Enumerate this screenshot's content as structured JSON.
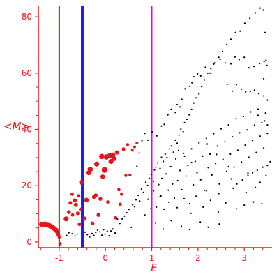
{
  "chart_data": {
    "type": "scatter",
    "title": "",
    "xlabel": "E",
    "ylabel": "<M>",
    "xlim": [
      -1.45,
      3.6
    ],
    "ylim": [
      -2,
      84
    ],
    "x_ticks": [
      -1,
      0,
      1,
      2,
      3
    ],
    "y_ticks": [
      0,
      20,
      40,
      60,
      80
    ],
    "grid": false,
    "axis_color": "#e0161b",
    "vertical_lines": [
      {
        "x": -1.0,
        "color": "#007a00"
      },
      {
        "x": -0.5,
        "color": "#1e1ee6"
      },
      {
        "x": 1.0,
        "color": "#e600e6"
      }
    ],
    "series": [
      {
        "color": "#e0161b",
        "points": [
          [
            -1.38,
            6.3,
            3.6
          ],
          [
            -1.34,
            6.1,
            3.6
          ],
          [
            -1.31,
            6.4,
            3.6
          ],
          [
            -1.28,
            6.0,
            3.6
          ],
          [
            -1.25,
            6.2,
            3.6
          ],
          [
            -1.22,
            5.9,
            3.6
          ],
          [
            -1.19,
            5.6,
            3.6
          ],
          [
            -1.16,
            5.4,
            3.6
          ],
          [
            -1.13,
            5.0,
            3.6
          ],
          [
            -1.1,
            4.7,
            3.6
          ],
          [
            -1.07,
            4.2,
            3.6
          ],
          [
            -1.04,
            3.6,
            3.3
          ],
          [
            -1.02,
            2.8,
            3.0
          ],
          [
            -1.0,
            1.8,
            2.5
          ],
          [
            -0.98,
            -0.6,
            2.4
          ],
          [
            -0.85,
            8.2,
            3.6
          ],
          [
            -0.79,
            10.6,
            2.8
          ],
          [
            -0.76,
            13.9,
            2.6
          ],
          [
            -0.72,
            17.0,
            2.4
          ],
          [
            -0.71,
            9.6,
            2.4
          ],
          [
            -0.66,
            14.8,
            2.8
          ],
          [
            -0.64,
            13.2,
            3.0
          ],
          [
            -0.6,
            10.2,
            2.6
          ],
          [
            -0.56,
            6.3,
            2.6
          ],
          [
            -0.58,
            16.4,
            2.4
          ],
          [
            -0.54,
            11.6,
            2.4
          ],
          [
            -0.52,
            21.2,
            3.3
          ],
          [
            -0.45,
            8.3,
            3.0
          ],
          [
            -0.41,
            14.9,
            3.3
          ],
          [
            -0.36,
            24.6,
            3.5
          ],
          [
            -0.33,
            25.8,
            3.8
          ],
          [
            -0.28,
            6.6,
            2.8
          ],
          [
            -0.25,
            16.0,
            2.8
          ],
          [
            -0.21,
            16.6,
            2.8
          ],
          [
            -0.19,
            27.7,
            3.6
          ],
          [
            -0.15,
            9.6,
            2.8
          ],
          [
            -0.11,
            15.3,
            2.8
          ],
          [
            -0.08,
            30.4,
            3.8
          ],
          [
            -0.06,
            23.2,
            3.2
          ],
          [
            -0.02,
            25.6,
            4.2
          ],
          [
            0.02,
            30.2,
            3.8
          ],
          [
            0.05,
            14.2,
            2.4
          ],
          [
            0.09,
            30.6,
            3.8
          ],
          [
            0.12,
            28.6,
            3.6
          ],
          [
            0.16,
            30.9,
            3.6
          ],
          [
            0.19,
            29.6,
            3.4
          ],
          [
            0.22,
            8.6,
            2.4
          ],
          [
            0.25,
            31.8,
            3.0
          ],
          [
            0.29,
            18.6,
            2.4
          ],
          [
            0.32,
            13.4,
            2.4
          ],
          [
            0.35,
            17.0,
            2.4
          ],
          [
            0.39,
            33.0,
            2.6
          ],
          [
            0.44,
            23.6,
            2.2
          ],
          [
            0.48,
            34.6,
            2.2
          ],
          [
            0.53,
            23.8,
            2.2
          ],
          [
            0.58,
            32.6,
            2.0
          ],
          [
            0.63,
            33.8,
            2.0
          ],
          [
            0.68,
            35.2,
            2.0
          ]
        ]
      },
      {
        "color": "#000000",
        "points": [
          [
            -0.84,
            2.3
          ],
          [
            -0.79,
            3.3
          ],
          [
            -0.72,
            2.9
          ],
          [
            -0.66,
            2.1
          ],
          [
            -0.61,
            2.8
          ],
          [
            -0.44,
            3.5
          ],
          [
            -0.39,
            2.6
          ],
          [
            -0.34,
            1.8
          ],
          [
            -0.29,
            3.0
          ],
          [
            -0.25,
            2.3
          ],
          [
            -0.21,
            3.4
          ],
          [
            -0.17,
            4.2
          ],
          [
            -0.12,
            3.6
          ],
          [
            -0.08,
            2.4
          ],
          [
            -0.04,
            4.4
          ],
          [
            -0.01,
            2.8
          ],
          [
            0.04,
            3.8
          ],
          [
            0.08,
            2.2
          ],
          [
            0.12,
            3.9
          ],
          [
            0.16,
            4.6
          ],
          [
            0.21,
            3.2
          ],
          [
            0.26,
            8.1
          ],
          [
            0.31,
            6.6
          ],
          [
            0.36,
            8.2
          ],
          [
            0.41,
            9.2
          ],
          [
            0.46,
            10.4
          ],
          [
            0.51,
            11.6
          ],
          [
            0.56,
            5.2
          ],
          [
            0.59,
            13.2
          ],
          [
            0.63,
            12.5
          ],
          [
            0.66,
            15.0
          ],
          [
            0.71,
            16.6
          ],
          [
            0.74,
            14.5
          ],
          [
            0.78,
            18.8
          ],
          [
            0.82,
            17.6
          ],
          [
            0.87,
            21.2
          ],
          [
            0.91,
            20.1
          ],
          [
            0.95,
            22.6
          ],
          [
            0.99,
            24.0
          ],
          [
            1.04,
            21.6
          ],
          [
            1.06,
            25.6
          ],
          [
            1.09,
            26.6
          ],
          [
            1.13,
            28.1
          ],
          [
            1.18,
            26.1
          ],
          [
            1.21,
            30.1
          ],
          [
            1.25,
            28.6
          ],
          [
            1.29,
            31.2
          ],
          [
            1.33,
            30.0
          ],
          [
            1.38,
            33.1
          ],
          [
            1.42,
            34.1
          ],
          [
            1.47,
            31.9
          ],
          [
            1.51,
            36.2
          ],
          [
            1.55,
            35.1
          ],
          [
            1.59,
            38.0
          ],
          [
            1.63,
            40.1
          ],
          [
            1.68,
            39.2
          ],
          [
            1.71,
            42.4
          ],
          [
            1.76,
            43.6
          ],
          [
            1.81,
            45.2
          ],
          [
            1.86,
            47.1
          ],
          [
            1.91,
            49.4
          ],
          [
            1.96,
            51.2
          ],
          [
            2.02,
            52.6
          ],
          [
            2.08,
            55.2
          ],
          [
            2.14,
            57.6
          ],
          [
            2.21,
            60.0
          ],
          [
            2.28,
            61.6
          ],
          [
            2.36,
            63.6
          ],
          [
            2.45,
            65.6
          ],
          [
            2.53,
            67.7
          ],
          [
            2.62,
            70.1
          ],
          [
            2.71,
            72.0
          ],
          [
            2.81,
            74.4
          ],
          [
            2.91,
            74.9
          ],
          [
            3.01,
            77.7
          ],
          [
            3.12,
            79.5
          ],
          [
            3.24,
            81.4
          ],
          [
            3.34,
            83.1
          ],
          [
            3.41,
            82.4
          ],
          [
            3.45,
            74.4
          ],
          [
            3.47,
            64.6
          ],
          [
            3.49,
            62.7
          ],
          [
            3.42,
            58.0
          ],
          [
            0.68,
            26.9
          ],
          [
            0.73,
            31.6
          ],
          [
            0.79,
            36.0
          ],
          [
            0.85,
            38.6
          ],
          [
            0.92,
            36.2
          ],
          [
            1.01,
            39.1
          ],
          [
            1.11,
            37.7
          ],
          [
            1.21,
            41.2
          ],
          [
            1.27,
            41.8
          ],
          [
            1.35,
            45.2
          ],
          [
            1.42,
            47.1
          ],
          [
            1.51,
            46.0
          ],
          [
            1.55,
            48.8
          ],
          [
            1.61,
            48.0
          ],
          [
            1.65,
            50.7
          ],
          [
            1.72,
            54.4
          ],
          [
            1.82,
            55.3
          ],
          [
            1.87,
            56.6
          ],
          [
            1.91,
            58.7
          ],
          [
            1.99,
            59.7
          ],
          [
            2.06,
            59.0
          ],
          [
            2.16,
            62.1
          ],
          [
            2.26,
            60.0
          ],
          [
            2.34,
            63.2
          ],
          [
            2.48,
            64.9
          ],
          [
            2.59,
            63.6
          ],
          [
            2.71,
            63.3
          ],
          [
            2.8,
            65.7
          ],
          [
            2.89,
            64.8
          ],
          [
            3.0,
            65.6
          ],
          [
            3.1,
            61.9
          ],
          [
            3.21,
            62.4
          ],
          [
            3.33,
            63.4
          ],
          [
            3.43,
            64.1
          ],
          [
            2.63,
            56.0
          ],
          [
            2.74,
            53.6
          ],
          [
            2.83,
            55.9
          ],
          [
            2.94,
            54.3
          ],
          [
            3.03,
            53.3
          ],
          [
            3.13,
            53.5
          ],
          [
            3.22,
            53.9
          ],
          [
            3.31,
            52.7
          ],
          [
            3.42,
            51.9
          ],
          [
            3.5,
            50.4
          ],
          [
            0.85,
            9.6
          ],
          [
            0.92,
            15.2
          ],
          [
            0.98,
            11.8
          ],
          [
            1.04,
            18.2
          ],
          [
            1.1,
            12.4
          ],
          [
            1.15,
            20.4
          ],
          [
            1.18,
            16.1
          ],
          [
            1.22,
            22.6
          ],
          [
            1.27,
            11.6
          ],
          [
            1.31,
            24.2
          ],
          [
            1.36,
            18.4
          ],
          [
            1.41,
            26.8
          ],
          [
            1.45,
            20.6
          ],
          [
            1.49,
            15.6
          ],
          [
            1.52,
            29.5
          ],
          [
            1.56,
            21.8
          ],
          [
            1.61,
            25.4
          ],
          [
            1.65,
            18.6
          ],
          [
            1.69,
            31.5
          ],
          [
            1.74,
            23.4
          ],
          [
            1.78,
            27.2
          ],
          [
            1.82,
            13.6
          ],
          [
            1.86,
            33.1
          ],
          [
            1.9,
            20.3
          ],
          [
            1.94,
            28.6
          ],
          [
            1.98,
            24.6
          ],
          [
            2.02,
            35.2
          ],
          [
            2.06,
            22.1
          ],
          [
            2.1,
            30.5
          ],
          [
            2.14,
            18.4
          ],
          [
            2.18,
            36.8
          ],
          [
            2.22,
            26.4
          ],
          [
            2.26,
            31.2
          ],
          [
            2.3,
            23.8
          ],
          [
            2.34,
            38.5
          ],
          [
            2.38,
            27.9
          ],
          [
            2.42,
            34.1
          ],
          [
            2.46,
            20.6
          ],
          [
            2.5,
            40.2
          ],
          [
            2.54,
            29.4
          ],
          [
            2.58,
            35.6
          ],
          [
            2.62,
            25.1
          ],
          [
            2.66,
            41.6
          ],
          [
            2.7,
            31.2
          ],
          [
            2.74,
            37.4
          ],
          [
            2.78,
            26.6
          ],
          [
            2.82,
            43.8
          ],
          [
            2.86,
            32.6
          ],
          [
            2.9,
            38.8
          ],
          [
            2.94,
            28.4
          ],
          [
            2.98,
            44.6
          ],
          [
            3.02,
            34.4
          ],
          [
            3.06,
            39.8
          ],
          [
            3.1,
            30.1
          ],
          [
            3.14,
            46.2
          ],
          [
            3.18,
            36.1
          ],
          [
            3.22,
            41.5
          ],
          [
            3.26,
            31.8
          ],
          [
            3.3,
            47.2
          ],
          [
            3.34,
            37.6
          ],
          [
            3.38,
            42.4
          ],
          [
            3.42,
            33.4
          ],
          [
            3.46,
            45.8
          ],
          [
            3.5,
            38.6
          ],
          [
            1.2,
            16.4
          ],
          [
            1.37,
            14.1
          ],
          [
            1.55,
            12.2
          ],
          [
            1.7,
            15.4
          ],
          [
            1.85,
            10.2
          ],
          [
            1.96,
            16.3
          ],
          [
            2.11,
            12.4
          ],
          [
            2.27,
            14.8
          ],
          [
            2.44,
            10.6
          ],
          [
            2.6,
            13.9
          ],
          [
            2.83,
            11.8
          ],
          [
            3.0,
            13.1
          ],
          [
            3.2,
            14.2
          ],
          [
            3.38,
            13.6
          ],
          [
            1.08,
            6.8
          ],
          [
            1.25,
            4.6
          ],
          [
            1.42,
            7.6
          ],
          [
            1.64,
            5.6
          ],
          [
            1.82,
            4.4
          ],
          [
            2.05,
            7.1
          ],
          [
            2.22,
            5.2
          ],
          [
            2.46,
            6.4
          ],
          [
            2.72,
            22.4
          ],
          [
            2.84,
            20.6
          ],
          [
            2.96,
            22.0
          ],
          [
            3.08,
            23.6
          ],
          [
            3.18,
            24.6
          ],
          [
            3.28,
            25.5
          ],
          [
            3.4,
            26.6
          ],
          [
            3.5,
            27.2
          ],
          [
            3.56,
            28.5
          ],
          [
            3.3,
            45.0
          ],
          [
            3.44,
            43.0
          ],
          [
            3.5,
            41.6
          ],
          [
            1.58,
            32.5
          ],
          [
            1.71,
            30.5
          ],
          [
            1.86,
            28.2
          ],
          [
            2.2,
            34.8
          ],
          [
            2.4,
            31.1
          ],
          [
            2.66,
            26.8
          ],
          [
            3.08,
            24.5
          ],
          [
            3.34,
            21.2
          ],
          [
            2.18,
            18.2
          ],
          [
            2.45,
            17.2
          ],
          [
            2.76,
            19.1
          ],
          [
            3.04,
            17.6
          ],
          [
            3.24,
            19.4
          ],
          [
            3.47,
            23.6
          ]
        ]
      }
    ]
  }
}
